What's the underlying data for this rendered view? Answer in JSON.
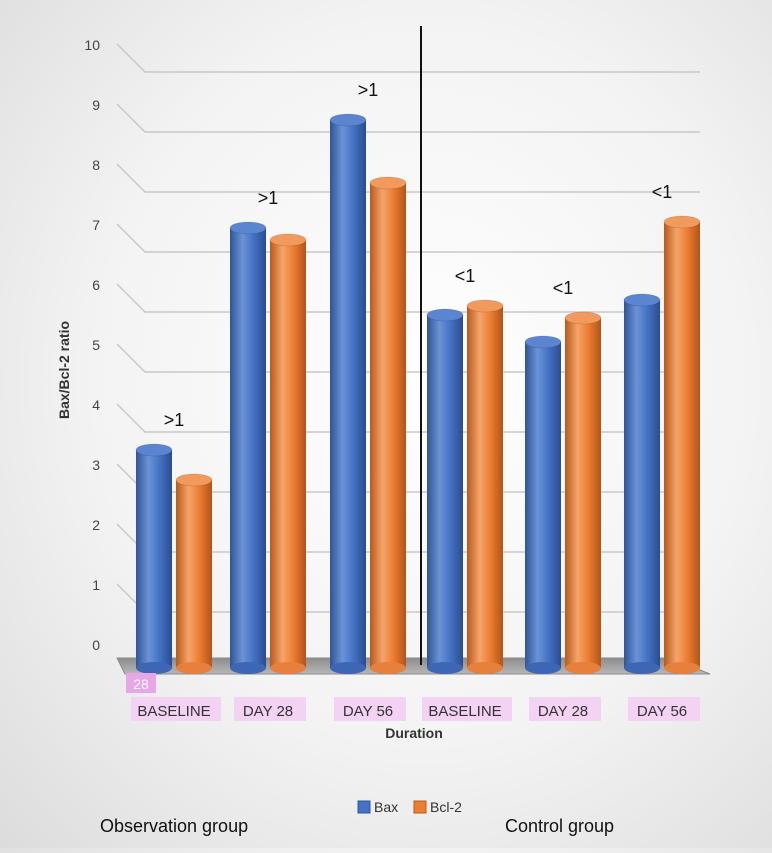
{
  "chart_data": {
    "type": "bar",
    "title": "",
    "xlabel": "Duration",
    "ylabel": "Bax/Bcl-2 ratio",
    "ylim": [
      0,
      10
    ],
    "yticks": [
      0,
      1,
      2,
      3,
      4,
      5,
      6,
      7,
      8,
      9,
      10
    ],
    "categories": [
      "BASELINE",
      "DAY 28",
      "DAY 56",
      "BASELINE",
      "DAY 28",
      "DAY 56"
    ],
    "series": [
      {
        "name": "Bax",
        "color": "#4472c4",
        "values": [
          3.7,
          7.4,
          9.2,
          5.95,
          5.5,
          6.2
        ]
      },
      {
        "name": "Bcl-2",
        "color": "#ed7d31",
        "values": [
          3.2,
          7.2,
          8.15,
          6.1,
          5.9,
          7.5
        ]
      }
    ],
    "ratio_labels": [
      ">1",
      ">1",
      ">1",
      "<1",
      "<1",
      "<1"
    ],
    "groups": [
      "Observation group",
      "Control group"
    ],
    "watermark": "28",
    "grid": true,
    "legend_position": "bottom-center"
  }
}
